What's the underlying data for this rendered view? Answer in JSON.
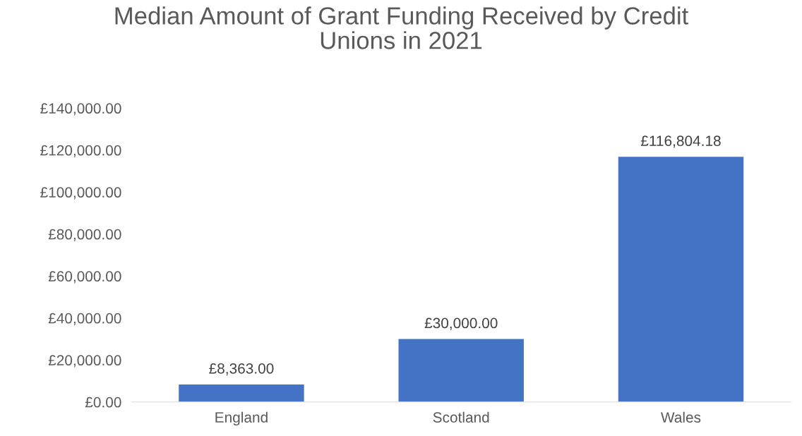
{
  "chart_data": {
    "type": "bar",
    "title": "Median Amount of Grant Funding Received by Credit\nUnions in 2021",
    "categories": [
      "England",
      "Scotland",
      "Wales"
    ],
    "values": [
      8363.0,
      30000.0,
      116804.18
    ],
    "value_labels": [
      "£8,363.00",
      "£30,000.00",
      "£116,804.18"
    ],
    "color": "#4472c4",
    "ylim": [
      0,
      140000
    ],
    "yticks": [
      {
        "value": 0,
        "label": "£0.00"
      },
      {
        "value": 20000,
        "label": "£20,000.00"
      },
      {
        "value": 40000,
        "label": "£40,000.00"
      },
      {
        "value": 60000,
        "label": "£60,000.00"
      },
      {
        "value": 80000,
        "label": "£80,000.00"
      },
      {
        "value": 100000,
        "label": "£100,000.00"
      },
      {
        "value": 120000,
        "label": "£120,000.00"
      },
      {
        "value": 140000,
        "label": "£140,000.00"
      }
    ],
    "grid": false,
    "legend": false
  }
}
